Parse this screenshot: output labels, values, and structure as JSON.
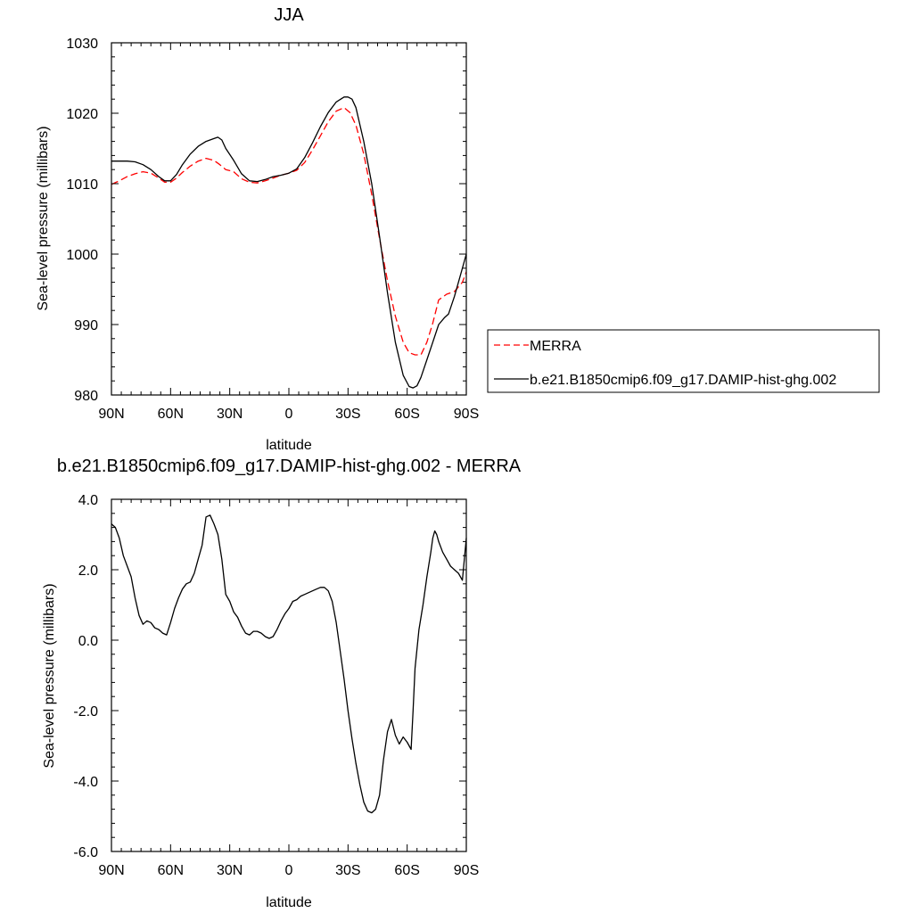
{
  "chart_data": [
    {
      "type": "line",
      "title": "JJA",
      "xlabel": "latitude",
      "ylabel": "Sea-level pressure (millibars)",
      "xlim": [
        90,
        -90
      ],
      "ylim": [
        980,
        1030
      ],
      "xticks": [
        90,
        60,
        30,
        0,
        -30,
        -60,
        -90
      ],
      "xtick_labels": [
        "90N",
        "60N",
        "30N",
        "0",
        "30S",
        "60S",
        "90S"
      ],
      "yticks": [
        980,
        990,
        1000,
        1010,
        1020,
        1030
      ],
      "ytick_labels": [
        "980",
        "990",
        "1000",
        "1010",
        "1020",
        "1030"
      ],
      "legend_position": "right",
      "series": [
        {
          "name": "MERRA",
          "color": "#ff0000",
          "dashed": true,
          "x": [
            90,
            86,
            82,
            78,
            74,
            70,
            66,
            63,
            60,
            57,
            54,
            50,
            46,
            42,
            38,
            35,
            32,
            28,
            24,
            20,
            16,
            12,
            8,
            4,
            0,
            -4,
            -8,
            -12,
            -16,
            -20,
            -24,
            -28,
            -31,
            -34,
            -38,
            -42,
            -46,
            -50,
            -54,
            -58,
            -61,
            -64,
            -67,
            -70,
            -73,
            -76,
            -80,
            -84,
            -88,
            -90
          ],
          "y": [
            1009.9,
            1010.4,
            1011.0,
            1011.4,
            1011.7,
            1011.5,
            1010.8,
            1010.2,
            1010.2,
            1010.8,
            1011.6,
            1012.5,
            1013.2,
            1013.6,
            1013.3,
            1012.7,
            1012.0,
            1011.7,
            1010.7,
            1010.2,
            1010.1,
            1010.4,
            1010.8,
            1011.2,
            1011.5,
            1011.9,
            1013.0,
            1014.8,
            1016.8,
            1018.8,
            1020.3,
            1020.8,
            1020.1,
            1018.3,
            1014.2,
            1008.5,
            1002.2,
            996.2,
            991.2,
            987.5,
            986.0,
            985.7,
            985.7,
            987.5,
            990.2,
            993.5,
            994.3,
            994.7,
            996.0,
            997.5
          ]
        },
        {
          "name": "b.e21.B1850cmip6.f09_g17.DAMIP-hist-ghg.002",
          "color": "#000000",
          "dashed": false,
          "x": [
            90,
            86,
            82,
            78,
            74,
            70,
            66,
            63,
            60,
            57,
            54,
            50,
            46,
            42,
            38,
            36,
            34,
            32,
            28,
            24,
            20,
            16,
            12,
            8,
            4,
            0,
            -4,
            -8,
            -12,
            -16,
            -20,
            -24,
            -28,
            -30,
            -32,
            -34,
            -38,
            -42,
            -46,
            -50,
            -54,
            -58,
            -61,
            -63,
            -65,
            -67,
            -70,
            -73,
            -76,
            -79,
            -81,
            -84,
            -87,
            -90
          ],
          "y": [
            1013.2,
            1013.2,
            1013.2,
            1013.1,
            1012.7,
            1012.0,
            1011.0,
            1010.4,
            1010.4,
            1011.3,
            1012.7,
            1014.2,
            1015.3,
            1016.0,
            1016.4,
            1016.6,
            1016.2,
            1015.0,
            1013.3,
            1011.4,
            1010.4,
            1010.3,
            1010.6,
            1011.0,
            1011.2,
            1011.5,
            1012.1,
            1013.7,
            1015.8,
            1018.1,
            1020.1,
            1021.6,
            1022.3,
            1022.3,
            1022.0,
            1020.8,
            1016.0,
            1010.0,
            1002.5,
            994.5,
            987.5,
            982.8,
            981.2,
            981.0,
            981.3,
            982.5,
            985.0,
            987.5,
            990.0,
            991.0,
            991.5,
            994.0,
            997.0,
            1000.0
          ]
        }
      ]
    },
    {
      "type": "line",
      "title": "b.e21.B1850cmip6.f09_g17.DAMIP-hist-ghg.002 - MERRA",
      "xlabel": "latitude",
      "ylabel": "Sea-level pressure (millibars)",
      "xlim": [
        90,
        -90
      ],
      "ylim": [
        -6.0,
        4.0
      ],
      "xticks": [
        90,
        60,
        30,
        0,
        -30,
        -60,
        -90
      ],
      "xtick_labels": [
        "90N",
        "60N",
        "30N",
        "0",
        "30S",
        "60S",
        "90S"
      ],
      "yticks": [
        -6.0,
        -4.0,
        -2.0,
        0.0,
        2.0,
        4.0
      ],
      "ytick_labels": [
        "-6.0",
        "-4.0",
        "-2.0",
        "0.0",
        "2.0",
        "4.0"
      ],
      "series": [
        {
          "color": "#000000",
          "dashed": false,
          "x": [
            90,
            88,
            86,
            84,
            82,
            80,
            78,
            76,
            74,
            72,
            70,
            68,
            66,
            64,
            62,
            60,
            58,
            56,
            54,
            52,
            50,
            48,
            46,
            44,
            42,
            40,
            38,
            36,
            34,
            32,
            30,
            28,
            26,
            24,
            22,
            20,
            18,
            16,
            14,
            12,
            10,
            8,
            6,
            4,
            2,
            0,
            -2,
            -4,
            -6,
            -8,
            -10,
            -12,
            -14,
            -16,
            -18,
            -20,
            -22,
            -24,
            -26,
            -28,
            -30,
            -32,
            -34,
            -36,
            -38,
            -40,
            -42,
            -44,
            -46,
            -48,
            -50,
            -52,
            -54,
            -56,
            -58,
            -60,
            -62,
            -63,
            -64,
            -66,
            -68,
            -70,
            -72,
            -73,
            -74,
            -75,
            -76,
            -78,
            -80,
            -82,
            -84,
            -86,
            -88,
            -90
          ],
          "y": [
            3.3,
            3.2,
            2.9,
            2.4,
            2.1,
            1.8,
            1.2,
            0.7,
            0.45,
            0.55,
            0.5,
            0.35,
            0.3,
            0.2,
            0.15,
            0.5,
            0.9,
            1.2,
            1.45,
            1.6,
            1.65,
            1.9,
            2.3,
            2.7,
            3.5,
            3.55,
            3.3,
            3.0,
            2.3,
            1.3,
            1.1,
            0.8,
            0.65,
            0.4,
            0.2,
            0.15,
            0.25,
            0.25,
            0.2,
            0.1,
            0.05,
            0.1,
            0.3,
            0.55,
            0.75,
            0.9,
            1.1,
            1.15,
            1.25,
            1.3,
            1.35,
            1.4,
            1.45,
            1.5,
            1.5,
            1.4,
            1.1,
            0.5,
            -0.3,
            -1.1,
            -2.0,
            -2.8,
            -3.5,
            -4.1,
            -4.6,
            -4.85,
            -4.9,
            -4.8,
            -4.4,
            -3.4,
            -2.6,
            -2.25,
            -2.7,
            -2.95,
            -2.75,
            -2.9,
            -3.1,
            -2.0,
            -0.8,
            0.3,
            1.0,
            1.8,
            2.5,
            2.9,
            3.1,
            3.0,
            2.8,
            2.5,
            2.3,
            2.1,
            2.0,
            1.9,
            1.7,
            2.9
          ]
        }
      ]
    }
  ]
}
